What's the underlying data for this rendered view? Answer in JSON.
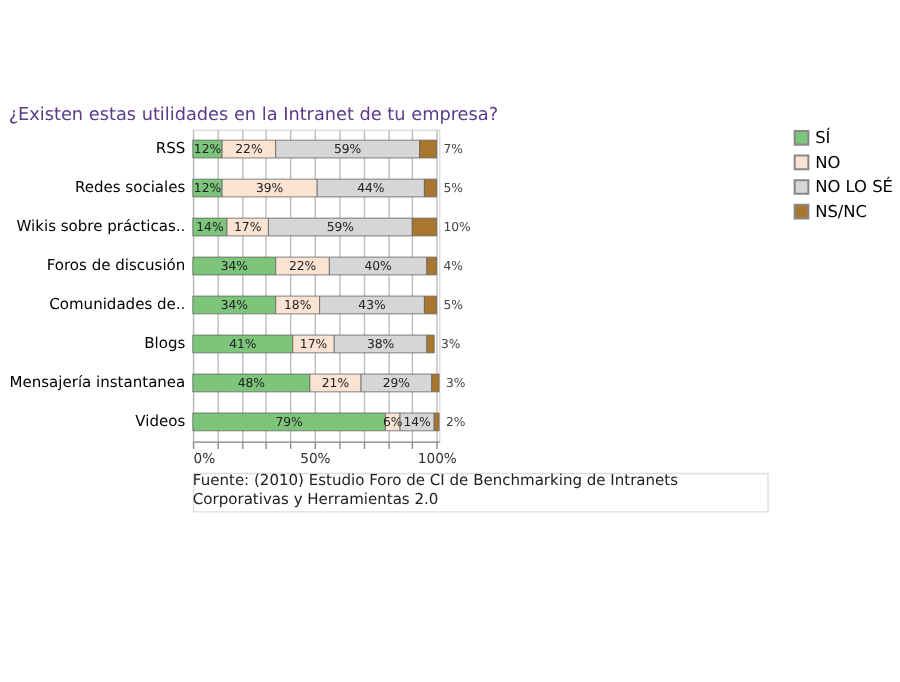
{
  "chart_data": {
    "type": "bar",
    "orientation": "horizontal",
    "stacked": true,
    "title": "¿Existen estas utilidades en la Intranet de tu empresa?",
    "categories": [
      "RSS",
      "Redes sociales",
      "Wikis sobre prácticas..",
      "Foros de discusión",
      "Comunidades de..",
      "Blogs",
      "Mensajería instantanea",
      "Videos"
    ],
    "series": [
      {
        "name": "SÍ",
        "color": "#7cc57a",
        "values": [
          12,
          12,
          14,
          34,
          34,
          41,
          48,
          79
        ],
        "value_labels": [
          "12%",
          "12%",
          "14%",
          "34%",
          "34%",
          "41%",
          "48%",
          "79%"
        ]
      },
      {
        "name": "NO",
        "color": "#fbe3d4",
        "values": [
          22,
          39,
          17,
          22,
          18,
          17,
          21,
          6
        ],
        "value_labels": [
          "22%",
          "39%",
          "17%",
          "22%",
          "18%",
          "17%",
          "21%",
          "6%"
        ]
      },
      {
        "name": "NO LO SÉ",
        "color": "#d6d6d6",
        "values": [
          59,
          44,
          59,
          40,
          43,
          38,
          29,
          14
        ],
        "value_labels": [
          "59%",
          "44%",
          "59%",
          "40%",
          "43%",
          "38%",
          "29%",
          "14%"
        ]
      },
      {
        "name": "NS/NC",
        "color": "#a8762e",
        "values": [
          7,
          5,
          10,
          4,
          5,
          3,
          3,
          2
        ],
        "value_labels": [
          "7%",
          "5%",
          "10%",
          "4%",
          "5%",
          "3%",
          "3%",
          "2%"
        ]
      }
    ],
    "xlim": [
      0,
      101
    ],
    "xticks": [
      {
        "value": 0,
        "label": "0%"
      },
      {
        "value": 10,
        "label": null
      },
      {
        "value": 20,
        "label": null
      },
      {
        "value": 30,
        "label": null
      },
      {
        "value": 40,
        "label": null
      },
      {
        "value": 50,
        "label": "50%"
      },
      {
        "value": 60,
        "label": null
      },
      {
        "value": 70,
        "label": null
      },
      {
        "value": 80,
        "label": null
      },
      {
        "value": 90,
        "label": null
      },
      {
        "value": 100,
        "label": "100%"
      }
    ],
    "grid": "x",
    "legend": "right",
    "annotations": [
      "Fuente: (2010) Estudio Foro de CI de Benchmarking de Intranets Corporativas y Herramientas 2.0"
    ]
  }
}
